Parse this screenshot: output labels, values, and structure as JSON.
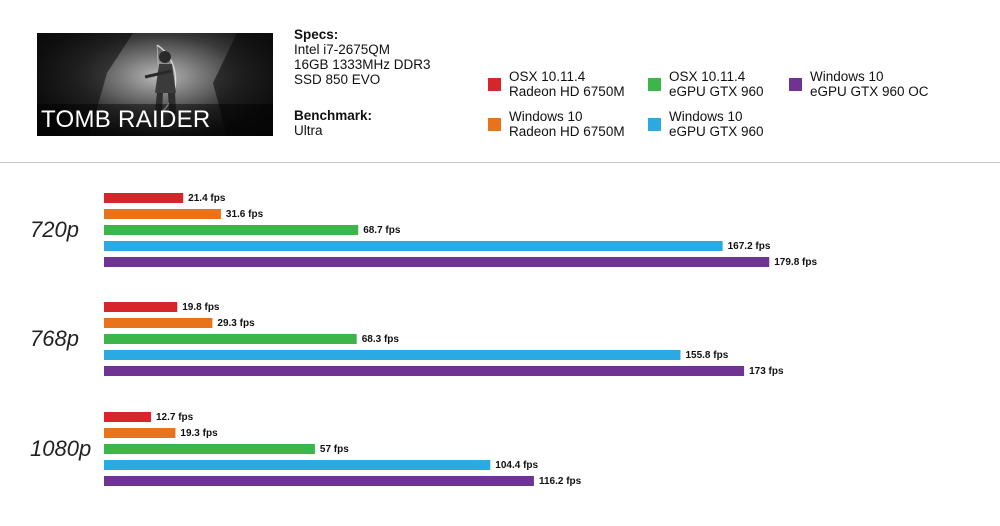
{
  "header": {
    "game_title": "TOMB RAIDER",
    "specs_heading": "Specs:",
    "specs_lines": [
      "Intel i7-2675QM",
      "16GB 1333MHz DDR3",
      "SSD 850 EVO"
    ],
    "benchmark_heading": "Benchmark:",
    "benchmark_value": "Ultra"
  },
  "legend": [
    {
      "line1": "OSX 10.11.4",
      "line2": "Radeon HD 6750M",
      "color": "#d7262b"
    },
    {
      "line1": "Windows 10",
      "line2": "Radeon HD 6750M",
      "color": "#e8731b"
    },
    {
      "line1": "OSX 10.11.4",
      "line2": "eGPU GTX 960",
      "color": "#3cb64a"
    },
    {
      "line1": "Windows 10",
      "line2": "eGPU GTX 960",
      "color": "#2aa9e2"
    },
    {
      "line1": "Windows 10",
      "line2": "eGPU GTX 960 OC",
      "color": "#6e3393"
    }
  ],
  "chart_data": {
    "type": "bar",
    "orientation": "horizontal",
    "unit": "fps",
    "categories": [
      "720p",
      "768p",
      "1080p"
    ],
    "series": [
      {
        "name": "OSX 10.11.4 Radeon HD 6750M",
        "color": "#d7262b",
        "values": [
          21.4,
          19.8,
          12.7
        ],
        "labels": [
          "21.4 fps",
          "19.8 fps",
          "12.7 fps"
        ]
      },
      {
        "name": "Windows 10 Radeon HD 6750M",
        "color": "#e8731b",
        "values": [
          31.6,
          29.3,
          19.3
        ],
        "labels": [
          "31.6 fps",
          "29.3 fps",
          "19.3 fps"
        ]
      },
      {
        "name": "OSX 10.11.4 eGPU GTX 960",
        "color": "#3cb64a",
        "values": [
          68.7,
          68.3,
          57
        ],
        "labels": [
          "68.7 fps",
          "68.3 fps",
          "57 fps"
        ]
      },
      {
        "name": "Windows 10 eGPU GTX 960",
        "color": "#2aa9e2",
        "values": [
          167.2,
          155.8,
          104.4
        ],
        "labels": [
          "167.2 fps",
          "155.8 fps",
          "104.4 fps"
        ]
      },
      {
        "name": "Windows 10 eGPU GTX 960 OC",
        "color": "#6e3393",
        "values": [
          179.8,
          173,
          116.2
        ],
        "labels": [
          "179.8 fps",
          "173 fps",
          "116.2 fps"
        ]
      }
    ],
    "xlim": [
      0,
      180
    ],
    "grid": false,
    "legend": "top"
  }
}
